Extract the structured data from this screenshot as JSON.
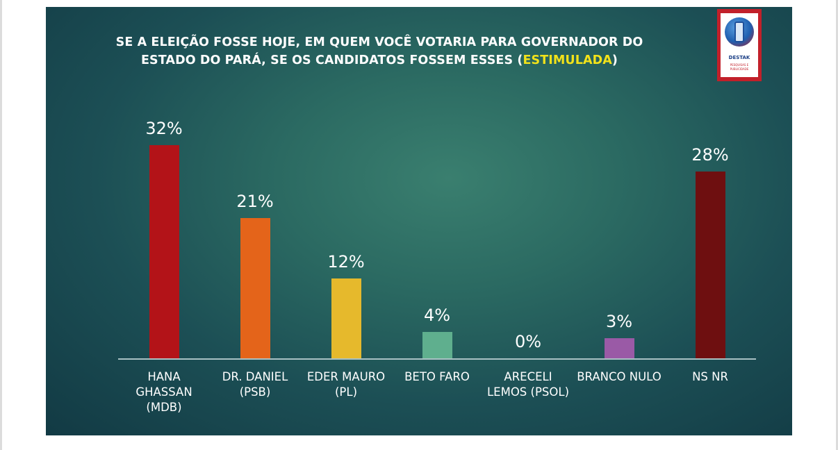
{
  "title": {
    "main": "SE A ELEIÇÃO FOSSE HOJE, EM QUEM VOCÊ VOTARIA PARA GOVERNADOR DO ESTADO DO PARÁ, SE OS CANDIDATOS FOSSEM ESSES (",
    "highlight": "ESTIMULADA",
    "close": ")"
  },
  "logo": {
    "name": "DESTAK",
    "tagline": "PESQUISAS E PUBLICIDADE",
    "icon": "door-globe-logo-icon"
  },
  "colors": {
    "background": "#2b6a62",
    "highlight": "#f2e21a",
    "logo_red": "#c2202a"
  },
  "chart_data": {
    "type": "bar",
    "title": "SE A ELEIÇÃO FOSSE HOJE, EM QUEM VOCÊ VOTARIA PARA GOVERNADOR DO ESTADO DO PARÁ, SE OS CANDIDATOS FOSSEM ESSES (ESTIMULADA)",
    "ylim": [
      0,
      35
    ],
    "grid": false,
    "categories": [
      [
        "HANA",
        "GHASSAN",
        "(MDB)"
      ],
      [
        "DR. DANIEL",
        "(PSB)"
      ],
      [
        "EDER MAURO",
        "(PL)"
      ],
      [
        "BETO FARO"
      ],
      [
        "ARECELI",
        "LEMOS (PSOL)"
      ],
      [
        "BRANCO NULO"
      ],
      [
        "NS NR"
      ]
    ],
    "values": [
      32,
      21,
      12,
      4,
      0,
      3,
      28
    ],
    "value_labels": [
      "32%",
      "21%",
      "12%",
      "4%",
      "0%",
      "3%",
      "28%"
    ],
    "colors": [
      "#b31318",
      "#e4641a",
      "#e6b92c",
      "#5faf8e",
      "#5faf8e",
      "#9a5aa6",
      "#6e0f10"
    ]
  }
}
